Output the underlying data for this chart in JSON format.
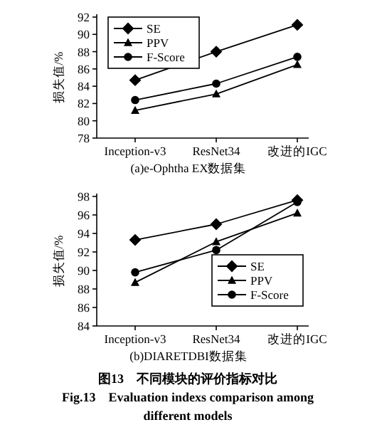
{
  "chart_data": [
    {
      "type": "line",
      "title": "(a)e-Ophtha EX数据集",
      "ylabel": "损失值/%",
      "categories": [
        "Inception-v3",
        "ResNet34",
        "改进的IGC"
      ],
      "ylim": [
        78,
        92
      ],
      "yticks": [
        78,
        80,
        82,
        84,
        86,
        88,
        90,
        92
      ],
      "legend": "top left",
      "grid": false,
      "series": [
        {
          "name": "SE",
          "color": "#000000",
          "marker": "diamond",
          "values": [
            84.7,
            88.0,
            91.1
          ]
        },
        {
          "name": "PPV",
          "color": "#000000",
          "marker": "triangle",
          "values": [
            81.2,
            83.1,
            86.5
          ]
        },
        {
          "name": "F-Score",
          "color": "#000000",
          "marker": "circle",
          "values": [
            82.4,
            84.3,
            87.4
          ]
        }
      ]
    },
    {
      "type": "line",
      "title": "(b)DIARETDBI数据集",
      "ylabel": "损失值/%",
      "categories": [
        "Inception-v3",
        "ResNet34",
        "改进的IGC"
      ],
      "ylim": [
        84,
        98
      ],
      "yticks": [
        84,
        86,
        88,
        90,
        92,
        94,
        96,
        98
      ],
      "legend": "bottom right",
      "grid": false,
      "series": [
        {
          "name": "SE",
          "color": "#000000",
          "marker": "diamond",
          "values": [
            93.3,
            95.0,
            97.6
          ]
        },
        {
          "name": "PPV",
          "color": "#000000",
          "marker": "triangle",
          "values": [
            88.7,
            93.1,
            96.2
          ]
        },
        {
          "name": "F-Score",
          "color": "#000000",
          "marker": "circle",
          "values": [
            89.8,
            92.2,
            97.4
          ]
        }
      ],
      "annotations": [
        "图13　不同模块的评价指标对比",
        "Fig.13　Evaluation indexs comparison among",
        "different models"
      ]
    }
  ]
}
